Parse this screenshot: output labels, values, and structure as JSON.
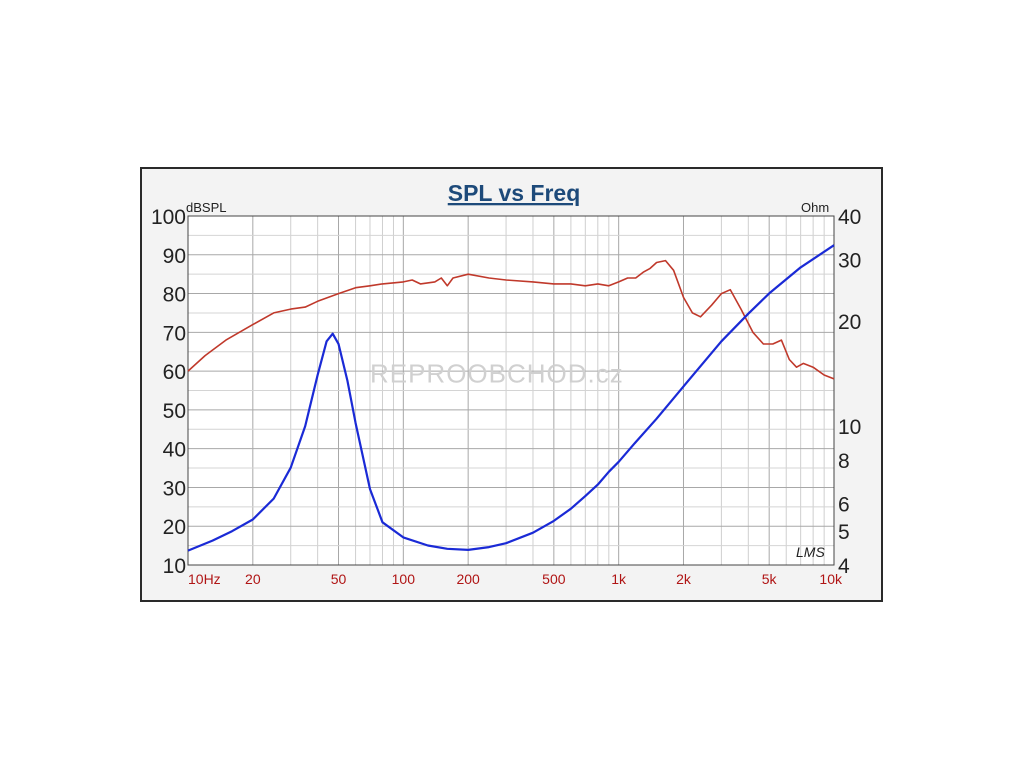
{
  "chart_data": {
    "type": "line",
    "title": "SPL vs Freq",
    "left_axis_unit": "dBSPL",
    "right_axis_unit": "Ohm",
    "x_scale": "log",
    "xlim": [
      10,
      10000
    ],
    "x_tick_labels": [
      {
        "value": 10,
        "label": "10Hz"
      },
      {
        "value": 20,
        "label": "20"
      },
      {
        "value": 50,
        "label": "50"
      },
      {
        "value": 100,
        "label": "100"
      },
      {
        "value": 200,
        "label": "200"
      },
      {
        "value": 500,
        "label": "500"
      },
      {
        "value": 1000,
        "label": "1k"
      },
      {
        "value": 2000,
        "label": "2k"
      },
      {
        "value": 5000,
        "label": "5k"
      },
      {
        "value": 10000,
        "label": "10k"
      }
    ],
    "left_ylim": [
      10,
      100
    ],
    "left_y_ticks": [
      {
        "value": 100,
        "label": "100"
      },
      {
        "value": 90,
        "label": "90"
      },
      {
        "value": 80,
        "label": "80"
      },
      {
        "value": 70,
        "label": "70"
      },
      {
        "value": 60,
        "label": "60"
      },
      {
        "value": 50,
        "label": "50"
      },
      {
        "value": 40,
        "label": "40"
      },
      {
        "value": 30,
        "label": "30"
      },
      {
        "value": 20,
        "label": "20"
      },
      {
        "value": 10,
        "label": "10"
      }
    ],
    "right_scale": "log",
    "right_ylim": [
      4,
      40
    ],
    "right_y_ticks": [
      {
        "value": 40,
        "label": "40"
      },
      {
        "value": 30,
        "label": "30"
      },
      {
        "value": 20,
        "label": "20"
      },
      {
        "value": 10,
        "label": "10"
      },
      {
        "value": 8,
        "label": "8"
      },
      {
        "value": 6,
        "label": "6"
      },
      {
        "value": 5,
        "label": "5"
      },
      {
        "value": 4,
        "label": "4"
      }
    ],
    "grid": true,
    "series": [
      {
        "axis": "left",
        "color": "#c0392b",
        "points": [
          [
            10,
            60
          ],
          [
            12,
            64
          ],
          [
            15,
            68
          ],
          [
            20,
            72
          ],
          [
            25,
            75
          ],
          [
            30,
            76
          ],
          [
            35,
            76.5
          ],
          [
            40,
            78
          ],
          [
            50,
            80
          ],
          [
            60,
            81.5
          ],
          [
            70,
            82
          ],
          [
            80,
            82.5
          ],
          [
            100,
            83
          ],
          [
            110,
            83.5
          ],
          [
            120,
            82.5
          ],
          [
            140,
            83
          ],
          [
            150,
            84
          ],
          [
            160,
            82
          ],
          [
            170,
            84
          ],
          [
            200,
            85
          ],
          [
            250,
            84
          ],
          [
            300,
            83.5
          ],
          [
            400,
            83
          ],
          [
            500,
            82.5
          ],
          [
            600,
            82.5
          ],
          [
            700,
            82
          ],
          [
            800,
            82.5
          ],
          [
            900,
            82
          ],
          [
            1000,
            83
          ],
          [
            1100,
            84
          ],
          [
            1200,
            84
          ],
          [
            1300,
            85.5
          ],
          [
            1400,
            86.5
          ],
          [
            1500,
            88
          ],
          [
            1650,
            88.5
          ],
          [
            1800,
            86
          ],
          [
            2000,
            79
          ],
          [
            2200,
            75
          ],
          [
            2400,
            74
          ],
          [
            2700,
            77
          ],
          [
            3000,
            80
          ],
          [
            3300,
            81
          ],
          [
            3700,
            76
          ],
          [
            4200,
            70
          ],
          [
            4700,
            67
          ],
          [
            5200,
            67
          ],
          [
            5700,
            68
          ],
          [
            6200,
            63
          ],
          [
            6700,
            61
          ],
          [
            7200,
            62
          ],
          [
            8000,
            61
          ],
          [
            9000,
            59
          ],
          [
            10000,
            58
          ]
        ]
      },
      {
        "axis": "right",
        "color": "#1a2ad6",
        "points": [
          [
            10,
            4.4
          ],
          [
            13,
            4.7
          ],
          [
            16,
            5.0
          ],
          [
            20,
            5.4
          ],
          [
            25,
            6.2
          ],
          [
            30,
            7.6
          ],
          [
            35,
            10.0
          ],
          [
            40,
            14.0
          ],
          [
            44,
            17.5
          ],
          [
            47,
            18.4
          ],
          [
            50,
            17.2
          ],
          [
            55,
            13.5
          ],
          [
            60,
            10.2
          ],
          [
            70,
            6.6
          ],
          [
            80,
            5.3
          ],
          [
            100,
            4.8
          ],
          [
            130,
            4.55
          ],
          [
            160,
            4.45
          ],
          [
            200,
            4.42
          ],
          [
            250,
            4.5
          ],
          [
            300,
            4.62
          ],
          [
            400,
            4.95
          ],
          [
            500,
            5.35
          ],
          [
            600,
            5.8
          ],
          [
            700,
            6.3
          ],
          [
            800,
            6.8
          ],
          [
            900,
            7.4
          ],
          [
            1000,
            7.9
          ],
          [
            1200,
            9.0
          ],
          [
            1500,
            10.5
          ],
          [
            2000,
            13.0
          ],
          [
            3000,
            17.5
          ],
          [
            4000,
            21.0
          ],
          [
            5000,
            24.0
          ],
          [
            7000,
            28.5
          ],
          [
            10000,
            33.0
          ]
        ]
      }
    ],
    "watermark": "REPROOBCHOD.cz",
    "signature": "LMS"
  }
}
